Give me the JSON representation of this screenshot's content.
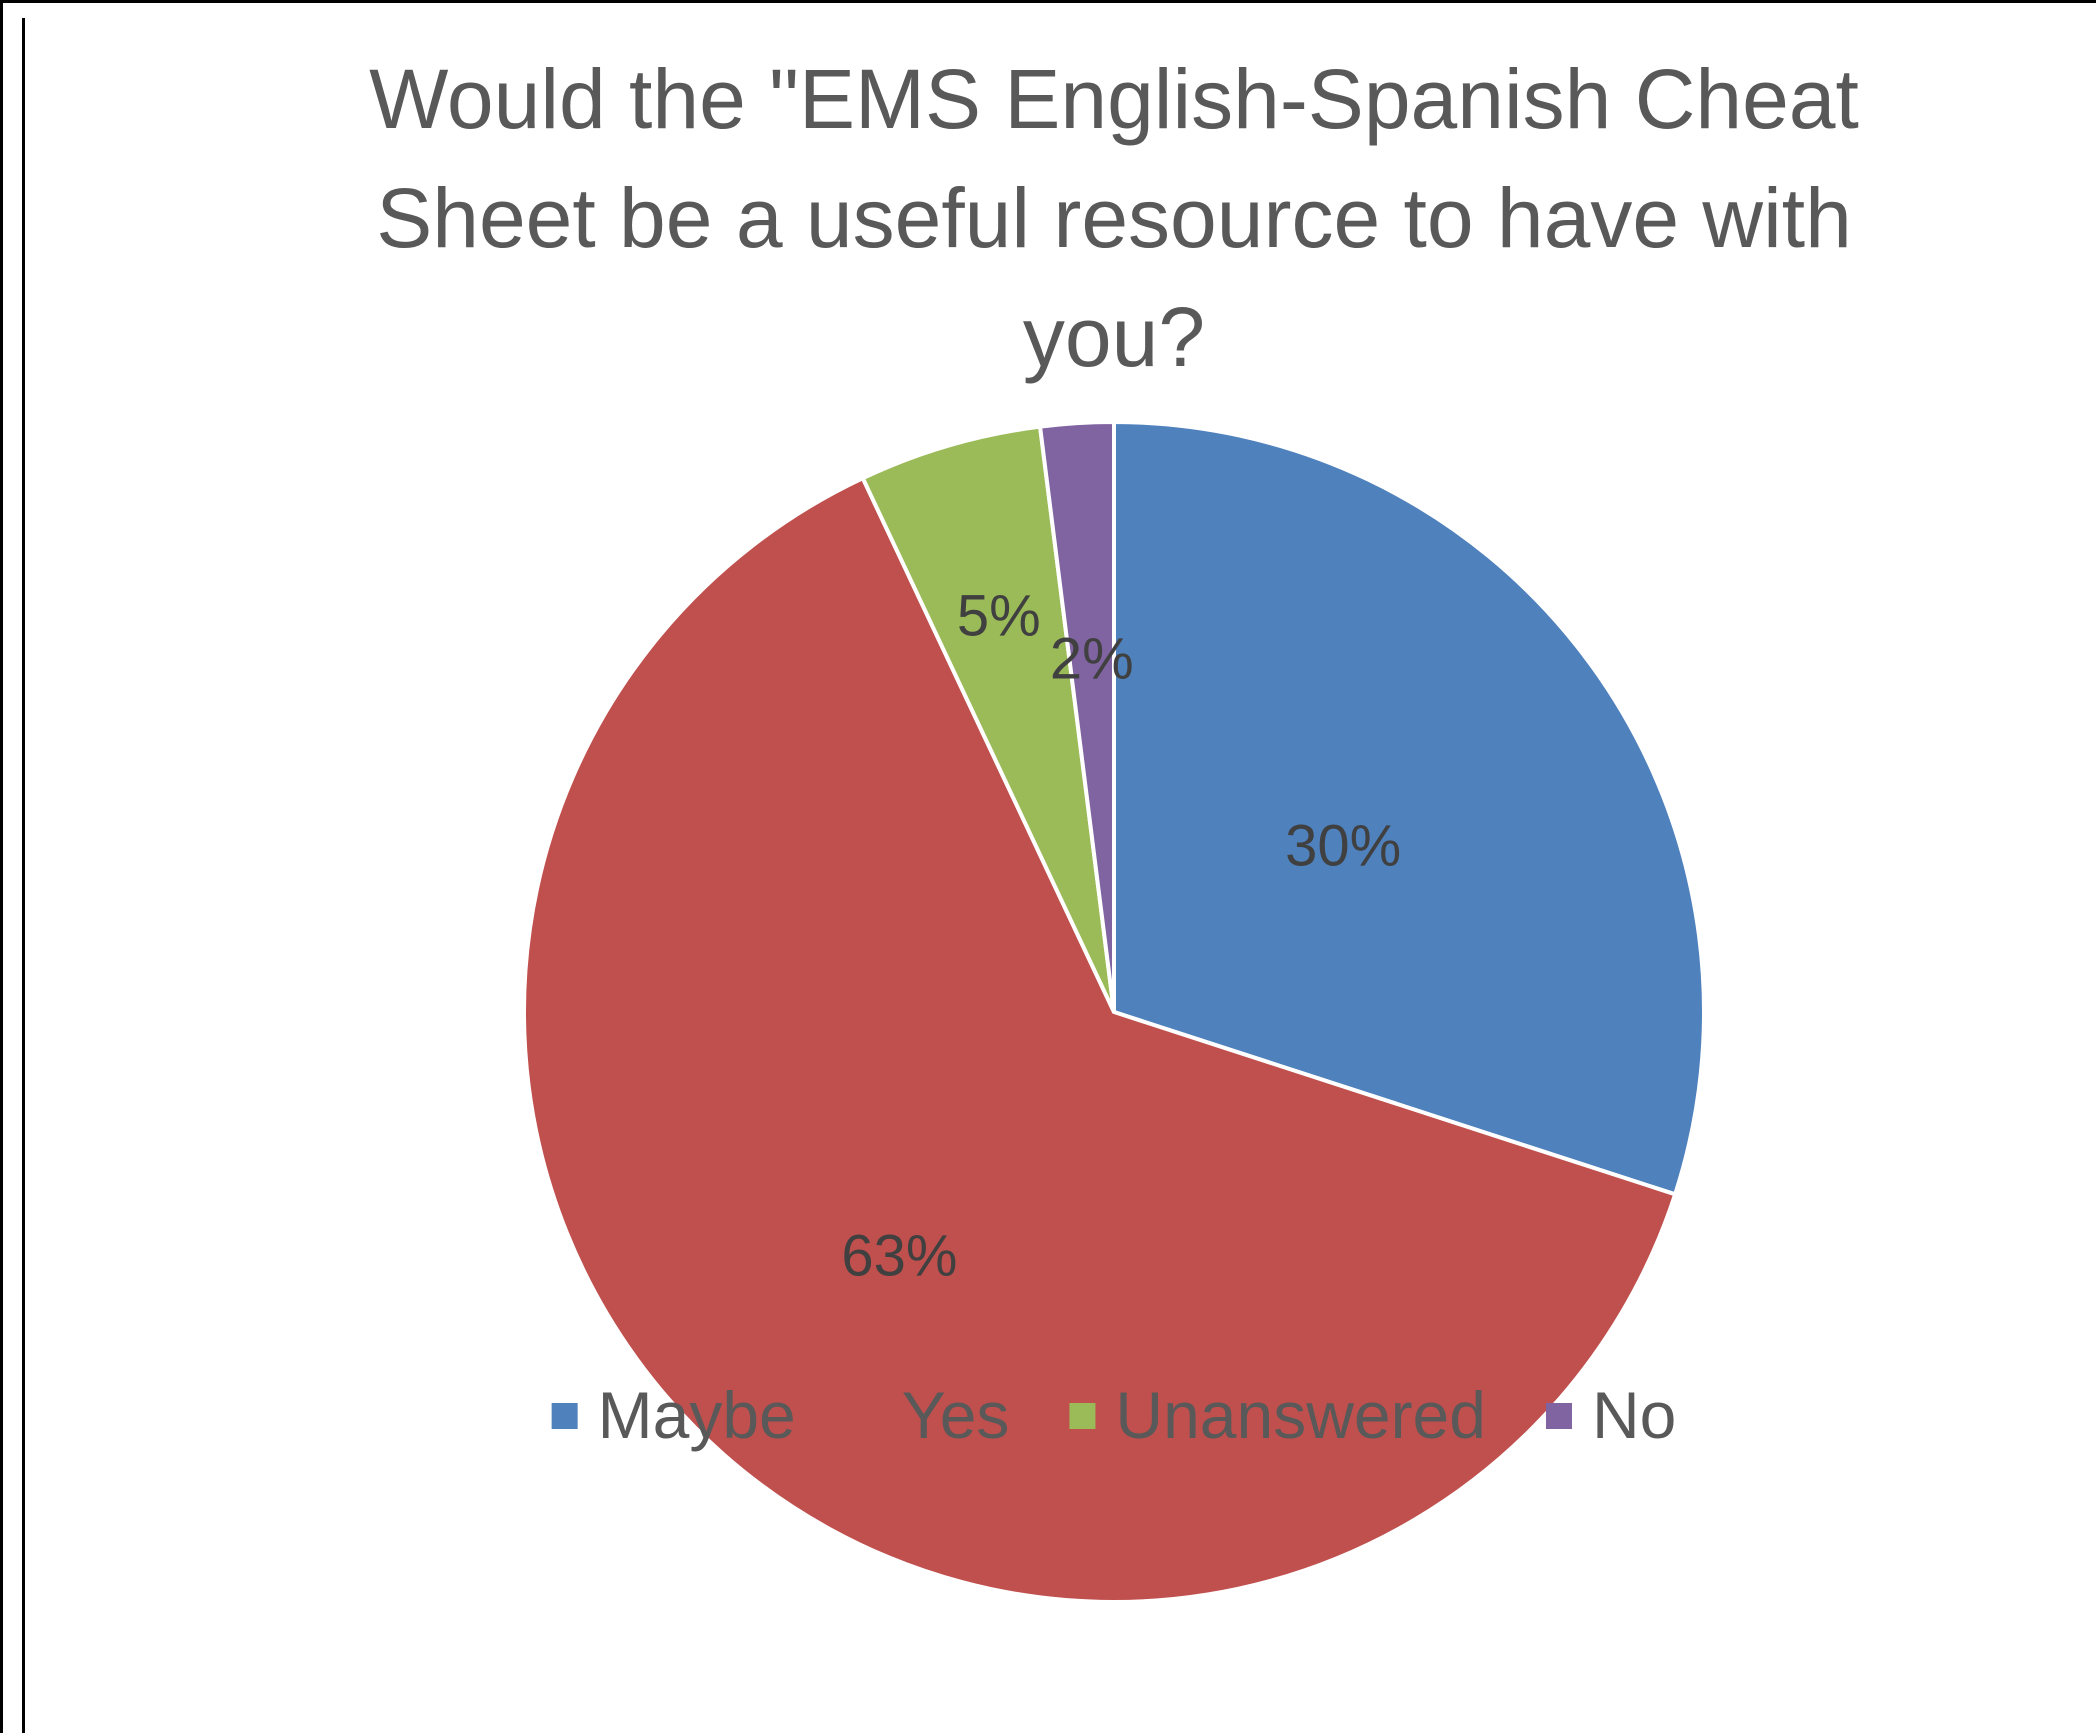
{
  "chart_data": {
    "type": "pie",
    "title": "Would the \"EMS English-Spanish Cheat Sheet be a useful resource to have with you?",
    "title_lines": [
      "Would the \"EMS English-Spanish Cheat",
      "Sheet be a useful resource to have with",
      "you?"
    ],
    "categories": [
      "Maybe",
      "Yes",
      "Unanswered",
      "No"
    ],
    "values": [
      30,
      63,
      5,
      2
    ],
    "data_labels": [
      "30%",
      "63%",
      "5%",
      "2%"
    ],
    "colors": [
      "#4F81BD",
      "#C0504D",
      "#9BBB59",
      "#8064A2"
    ],
    "legend_position": "bottom",
    "start_angle": "12 o'clock, clockwise"
  }
}
